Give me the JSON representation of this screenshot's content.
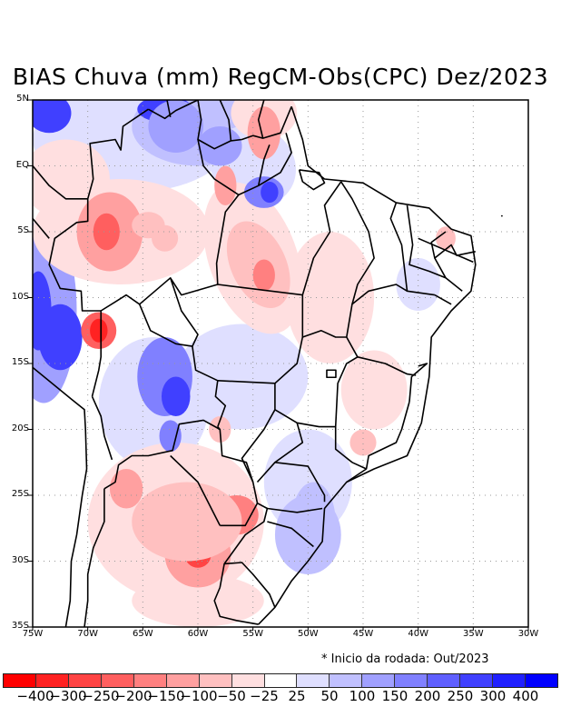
{
  "title": "BIAS Chuva (mm) RegCM-Obs(CPC) Dez/2023",
  "note": "* Inicio da rodada: Out/2023",
  "map": {
    "lon_range": [
      -75,
      -30
    ],
    "lat_range": [
      -35,
      5
    ],
    "lat_ticks": [
      {
        "value": 5,
        "label": "5N"
      },
      {
        "value": 0,
        "label": "EQ"
      },
      {
        "value": -5,
        "label": "5S"
      },
      {
        "value": -10,
        "label": "10S"
      },
      {
        "value": -15,
        "label": "15S"
      },
      {
        "value": -20,
        "label": "20S"
      },
      {
        "value": -25,
        "label": "25S"
      },
      {
        "value": -30,
        "label": "30S"
      },
      {
        "value": -35,
        "label": "35S"
      }
    ],
    "lon_ticks": [
      {
        "value": -75,
        "label": "75W"
      },
      {
        "value": -70,
        "label": "70W"
      },
      {
        "value": -65,
        "label": "65W"
      },
      {
        "value": -60,
        "label": "60W"
      },
      {
        "value": -55,
        "label": "55W"
      },
      {
        "value": -50,
        "label": "50W"
      },
      {
        "value": -45,
        "label": "45W"
      },
      {
        "value": -40,
        "label": "40W"
      },
      {
        "value": -35,
        "label": "35W"
      },
      {
        "value": -30,
        "label": "30W"
      }
    ]
  },
  "colorbar": {
    "colors": [
      "#ff0000",
      "#ff2222",
      "#ff4444",
      "#ff5f5f",
      "#ff8080",
      "#ffa0a0",
      "#ffc0c0",
      "#ffdfe0",
      "#ffffff",
      "#dfdfff",
      "#c0c0ff",
      "#a0a0ff",
      "#8080ff",
      "#5f5fff",
      "#4040ff",
      "#2020ff",
      "#0000ff"
    ],
    "labels": [
      "-400",
      "-300",
      "-250",
      "-200",
      "-150",
      "-100",
      "-50",
      "-25",
      "25",
      "50",
      "100",
      "150",
      "200",
      "250",
      "300",
      "400"
    ]
  },
  "chart_data": {
    "type": "heatmap",
    "title": "BIAS Chuva (mm) RegCM-Obs(CPC) Dez/2023",
    "variable": "precipitation bias (mm)",
    "xlabel": "",
    "ylabel": "",
    "xlim": [
      -75,
      -30
    ],
    "ylim": [
      -35,
      5
    ],
    "levels": [
      -400,
      -300,
      -250,
      -200,
      -150,
      -100,
      -50,
      -25,
      25,
      50,
      100,
      150,
      200,
      250,
      300,
      400
    ],
    "features": [
      {
        "lon": -73.5,
        "lat": 4,
        "value": 350
      },
      {
        "lon": -63,
        "lat": 4,
        "value": 300
      },
      {
        "lon": -59,
        "lat": 2,
        "value": 200
      },
      {
        "lon": -54,
        "lat": -2,
        "value": 150
      },
      {
        "lon": -68,
        "lat": -5,
        "value": -200
      },
      {
        "lon": -63,
        "lat": -5.5,
        "value": -100
      },
      {
        "lon": -54,
        "lat": -8,
        "value": -200
      },
      {
        "lon": -69,
        "lat": -12.5,
        "value": -300
      },
      {
        "lon": -73,
        "lat": -12,
        "value": 300
      },
      {
        "lon": -64,
        "lat": -17,
        "value": 300
      },
      {
        "lon": -63,
        "lat": -20,
        "value": 200
      },
      {
        "lon": -60,
        "lat": -29.5,
        "value": -250
      },
      {
        "lon": -56,
        "lat": -26.5,
        "value": -200
      },
      {
        "lon": -66,
        "lat": -24,
        "value": -150
      },
      {
        "lon": -57,
        "lat": -2,
        "value": -150
      },
      {
        "lon": -37,
        "lat": -5.5,
        "value": -100
      },
      {
        "lon": -45,
        "lat": -21,
        "value": -100
      },
      {
        "lon": -50,
        "lat": -28,
        "value": 100
      }
    ]
  }
}
